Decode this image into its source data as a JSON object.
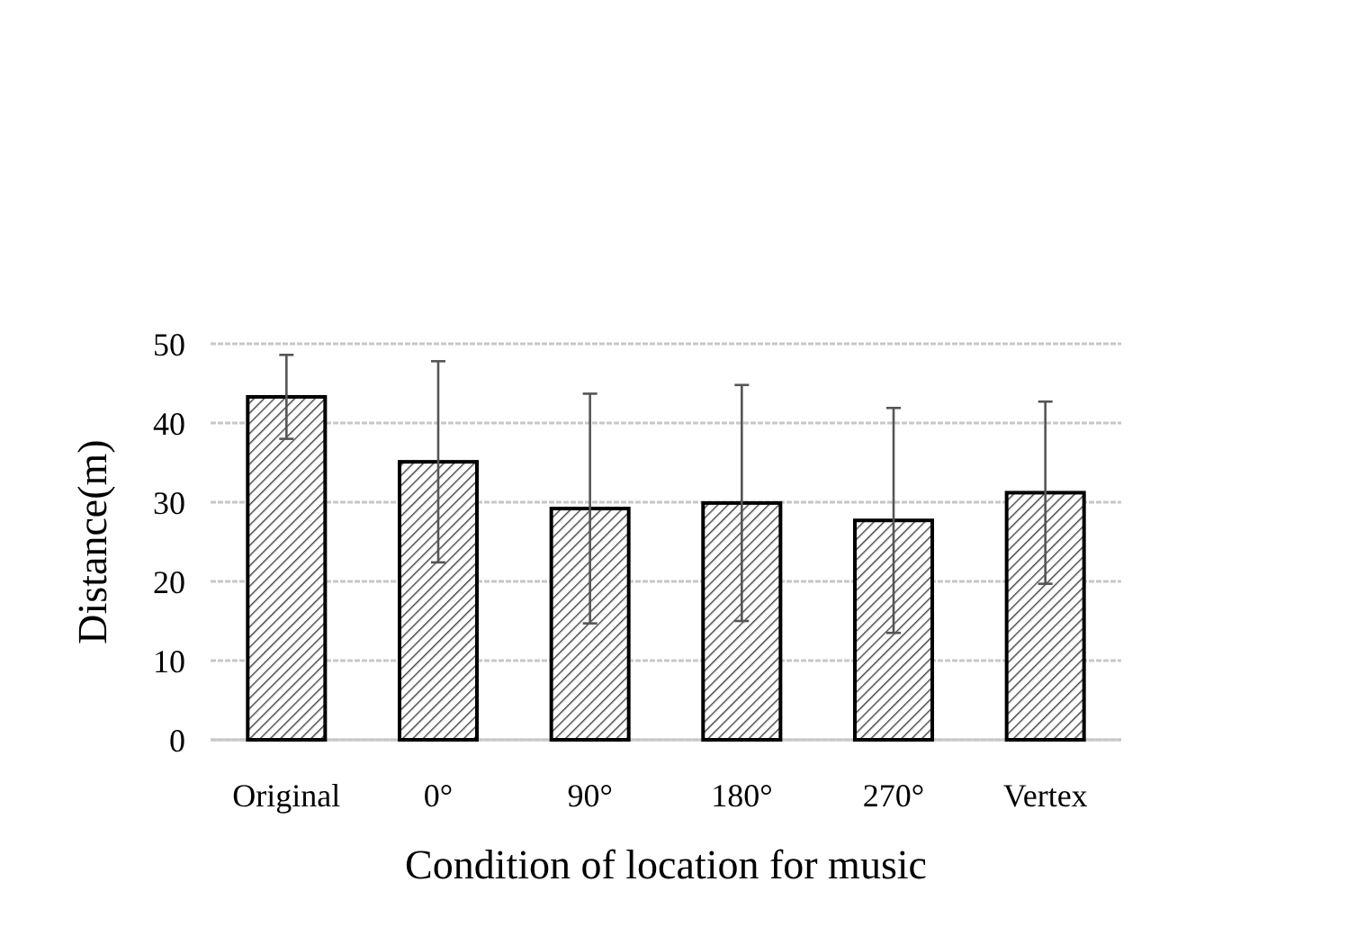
{
  "chart_data": {
    "type": "bar",
    "xlabel": "Condition of location for music",
    "ylabel": "Distance(m)",
    "categories": [
      "Original",
      "0°",
      "90°",
      "180°",
      "270°",
      "Vertex"
    ],
    "values": [
      43.3,
      35.1,
      29.2,
      29.9,
      27.7,
      31.2
    ],
    "errors": [
      5.3,
      12.7,
      14.5,
      14.9,
      14.2,
      11.5
    ],
    "color": "#000000",
    "ylim": [
      0,
      50
    ],
    "yticks": [
      0,
      10,
      20,
      30,
      40,
      50
    ],
    "grid": "y"
  }
}
